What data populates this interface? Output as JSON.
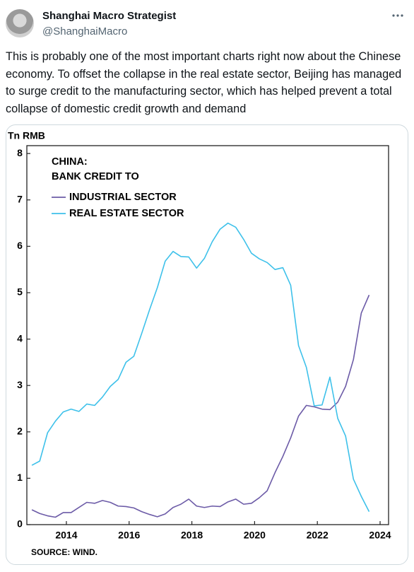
{
  "tweet": {
    "author": "Shanghai Macro Strategist",
    "handle": "@ShanghaiMacro",
    "text": "This is probably one of the most important charts right now about the Chinese economy. To offset the collapse in the real estate sector, Beijing has managed to surge credit to the manufacturing sector, which has helped prevent a total collapse of domestic credit growth and demand"
  },
  "chart_data": {
    "type": "line",
    "title": "CHINA:",
    "subtitle": "BANK CREDIT TO",
    "y_label": "Tn RMB",
    "source": "SOURCE: WIND.",
    "x": [
      2012.9,
      2013.15,
      2013.4,
      2013.65,
      2013.9,
      2014.15,
      2014.4,
      2014.65,
      2014.9,
      2015.15,
      2015.4,
      2015.65,
      2015.9,
      2016.15,
      2016.4,
      2016.65,
      2016.9,
      2017.15,
      2017.4,
      2017.65,
      2017.9,
      2018.15,
      2018.4,
      2018.65,
      2018.9,
      2019.15,
      2019.4,
      2019.65,
      2019.9,
      2020.15,
      2020.4,
      2020.65,
      2020.9,
      2021.15,
      2021.4,
      2021.65,
      2021.9,
      2022.15,
      2022.4,
      2022.65,
      2022.9,
      2023.15,
      2023.4,
      2023.65
    ],
    "series": [
      {
        "name": "INDUSTRIAL SECTOR",
        "color": "#6c5ba7",
        "values": [
          0.32,
          0.24,
          0.19,
          0.16,
          0.26,
          0.26,
          0.37,
          0.48,
          0.46,
          0.52,
          0.48,
          0.4,
          0.39,
          0.36,
          0.28,
          0.22,
          0.17,
          0.23,
          0.37,
          0.44,
          0.55,
          0.4,
          0.37,
          0.4,
          0.39,
          0.49,
          0.55,
          0.44,
          0.46,
          0.58,
          0.73,
          1.12,
          1.47,
          1.87,
          2.34,
          2.57,
          2.54,
          2.49,
          2.48,
          2.64,
          2.98,
          3.56,
          4.56,
          4.95
        ]
      },
      {
        "name": "REAL ESTATE SECTOR",
        "color": "#3ec1ea",
        "values": [
          1.28,
          1.37,
          1.98,
          2.23,
          2.43,
          2.49,
          2.44,
          2.6,
          2.57,
          2.75,
          2.98,
          3.13,
          3.5,
          3.63,
          4.12,
          4.63,
          5.11,
          5.68,
          5.89,
          5.78,
          5.77,
          5.53,
          5.74,
          6.1,
          6.37,
          6.5,
          6.41,
          6.15,
          5.85,
          5.73,
          5.65,
          5.5,
          5.54,
          5.16,
          3.86,
          3.39,
          2.56,
          2.58,
          3.18,
          2.29,
          1.91,
          0.98,
          0.61,
          0.28
        ]
      }
    ],
    "xlim": [
      2012.74,
      2024.27
    ],
    "xticks": [
      2014,
      2016,
      2018,
      2020,
      2022,
      2024
    ],
    "ylim": [
      0,
      8.17
    ],
    "yticks": [
      0,
      1,
      2,
      3,
      4,
      5,
      6,
      7,
      8
    ],
    "grid": false
  }
}
